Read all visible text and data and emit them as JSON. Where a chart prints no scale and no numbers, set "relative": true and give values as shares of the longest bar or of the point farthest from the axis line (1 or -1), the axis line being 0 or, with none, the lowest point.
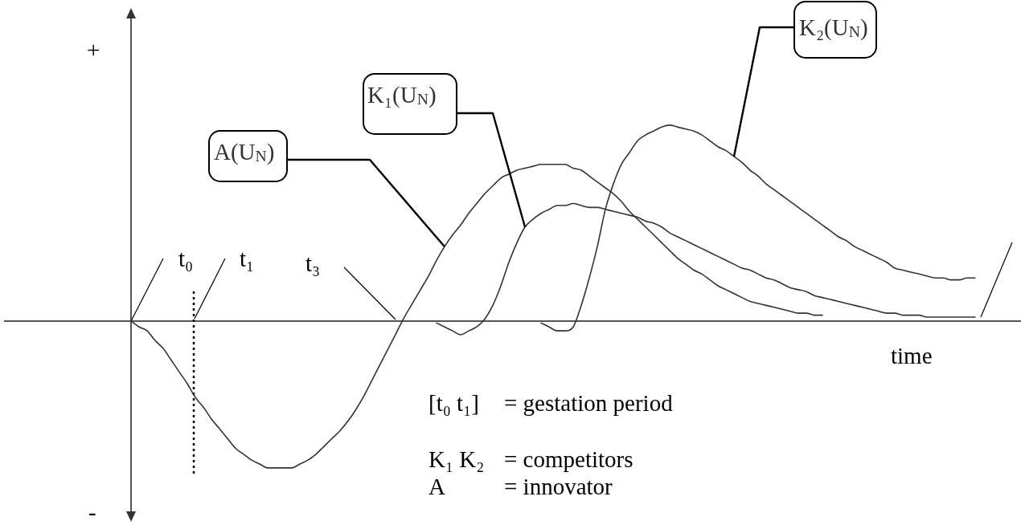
{
  "chart_data": {
    "type": "line",
    "relative": true,
    "xlabel": "time",
    "tick_labels": false,
    "categories": [
      null,
      null,
      null,
      null,
      null,
      null,
      null,
      null,
      null,
      null,
      null,
      null,
      null,
      null,
      null,
      null,
      null,
      null,
      null,
      null,
      null,
      null,
      null,
      null,
      null,
      null,
      null,
      null,
      null,
      null,
      null,
      null,
      null,
      null,
      null,
      null,
      null,
      null,
      null,
      null,
      null,
      null,
      null,
      null,
      null,
      null,
      null,
      null,
      null,
      null,
      null,
      null,
      null,
      null,
      null,
      null,
      null,
      null,
      null,
      null,
      null,
      null,
      null,
      null,
      null,
      null,
      null,
      null,
      null,
      null,
      null,
      null,
      null,
      null,
      null,
      null,
      null,
      null,
      null,
      null,
      null,
      null,
      null,
      null,
      null,
      null,
      null,
      null,
      null,
      null,
      null,
      null,
      null,
      null,
      null,
      null,
      null,
      null,
      null,
      null,
      null,
      null,
      null,
      null,
      null,
      null
    ],
    "series": [
      {
        "name": "A(U$_{N}$)",
        "color": "#333333",
        "values": [
          0,
          -0.03,
          -0.05,
          -0.1,
          -0.14,
          -0.2,
          -0.26,
          -0.32,
          -0.39,
          -0.44,
          -0.5,
          -0.55,
          -0.6,
          -0.65,
          -0.68,
          -0.71,
          -0.73,
          -0.75,
          -0.75,
          -0.75,
          -0.75,
          -0.73,
          -0.71,
          -0.68,
          -0.64,
          -0.6,
          -0.56,
          -0.51,
          -0.45,
          -0.38,
          -0.3,
          -0.22,
          -0.14,
          -0.06,
          0.02,
          0.09,
          0.16,
          0.23,
          0.31,
          0.38,
          0.44,
          0.49,
          0.55,
          0.6,
          0.65,
          0.69,
          0.73,
          0.75,
          0.77,
          0.78,
          0.79,
          0.8,
          0.8,
          0.8,
          0.8,
          0.78,
          0.77,
          0.74,
          0.71,
          0.68,
          0.65,
          0.61,
          0.56,
          0.52,
          0.48,
          0.44,
          0.4,
          0.36,
          0.32,
          0.29,
          0.26,
          0.24,
          0.21,
          0.18,
          0.16,
          0.14,
          0.12,
          0.1,
          0.09,
          0.08,
          0.07,
          0.06,
          0.05,
          0.04,
          0.04,
          0.03,
          0.03,
          null,
          null,
          null,
          null,
          null,
          null,
          null,
          null,
          null,
          null,
          null,
          null,
          null,
          null,
          null,
          null,
          null,
          null,
          null
        ]
      },
      {
        "name": "K₁(U$_{N}$)",
        "color": "#333333",
        "values": [
          null,
          null,
          null,
          null,
          null,
          null,
          null,
          null,
          null,
          null,
          null,
          null,
          null,
          null,
          null,
          null,
          null,
          null,
          null,
          null,
          null,
          null,
          null,
          null,
          null,
          null,
          null,
          null,
          null,
          null,
          null,
          null,
          null,
          null,
          null,
          null,
          null,
          null,
          -0.01,
          -0.03,
          -0.05,
          -0.07,
          -0.05,
          -0.03,
          0.01,
          0.08,
          0.18,
          0.3,
          0.4,
          0.48,
          0.52,
          0.55,
          0.57,
          0.59,
          0.59,
          0.6,
          0.59,
          0.58,
          0.58,
          0.57,
          0.56,
          0.55,
          0.54,
          0.53,
          0.51,
          0.5,
          0.48,
          0.45,
          0.43,
          0.41,
          0.39,
          0.37,
          0.35,
          0.33,
          0.31,
          0.29,
          0.27,
          0.26,
          0.24,
          0.22,
          0.21,
          0.19,
          0.17,
          0.16,
          0.15,
          0.13,
          0.12,
          0.11,
          0.1,
          0.09,
          0.08,
          0.07,
          0.06,
          0.05,
          0.04,
          0.04,
          0.03,
          0.03,
          0.03,
          0.02,
          0.02,
          0.02,
          0.02,
          0.02,
          0.02,
          0.02
        ]
      },
      {
        "name": "K₂(U$_{N}$)",
        "color": "#333333",
        "values": [
          null,
          null,
          null,
          null,
          null,
          null,
          null,
          null,
          null,
          null,
          null,
          null,
          null,
          null,
          null,
          null,
          null,
          null,
          null,
          null,
          null,
          null,
          null,
          null,
          null,
          null,
          null,
          null,
          null,
          null,
          null,
          null,
          null,
          null,
          null,
          null,
          null,
          null,
          null,
          null,
          null,
          null,
          null,
          null,
          null,
          null,
          null,
          null,
          null,
          null,
          null,
          -0.01,
          -0.03,
          -0.05,
          -0.05,
          -0.03,
          0.08,
          0.22,
          0.38,
          0.57,
          0.7,
          0.8,
          0.86,
          0.92,
          0.95,
          0.97,
          0.99,
          1,
          0.99,
          0.98,
          0.97,
          0.95,
          0.92,
          0.89,
          0.87,
          0.84,
          0.81,
          0.77,
          0.74,
          0.7,
          0.67,
          0.64,
          0.61,
          0.58,
          0.55,
          0.52,
          0.49,
          0.46,
          0.43,
          0.41,
          0.38,
          0.36,
          0.34,
          0.32,
          0.3,
          0.27,
          0.26,
          0.25,
          0.24,
          0.23,
          0.22,
          0.22,
          0.21,
          0.21,
          0.22,
          0.22
        ]
      }
    ],
    "annotations": [
      "+",
      "-",
      "t₀",
      "t₁",
      "t₃",
      "[t₀ t₁]",
      "= gestation period",
      "K₁ K₂",
      "= competitors",
      "A",
      "= innovator"
    ]
  }
}
